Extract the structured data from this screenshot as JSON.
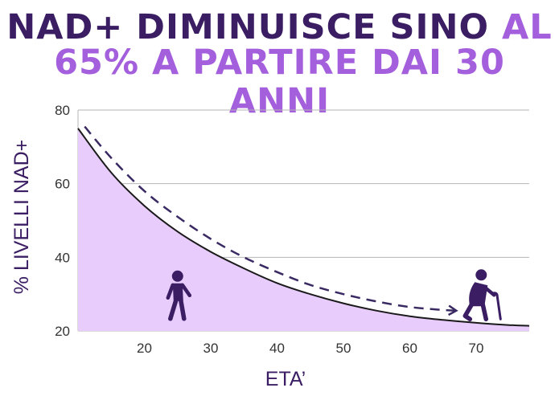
{
  "header": {
    "line1_dark": "NAD+ DIMINUISCE SINO",
    "line1_purple": "AL",
    "line2_purple": "65% A PARTIRE DAI 30 ANNI"
  },
  "chart_data": {
    "type": "area",
    "title": "NAD+ DIMINUISCE SINO AL 65% A PARTIRE DAI 30 ANNI",
    "xlabel": "ETA’",
    "ylabel": "% LIVELLI NAD+",
    "xlim": [
      10,
      78
    ],
    "ylim": [
      20,
      80
    ],
    "xticks": [
      20,
      30,
      40,
      50,
      60,
      70
    ],
    "yticks": [
      20,
      40,
      60,
      80
    ],
    "grid": "horizontal",
    "x": [
      10,
      15,
      20,
      25,
      30,
      35,
      40,
      45,
      50,
      55,
      60,
      65,
      70,
      75,
      78
    ],
    "series": [
      {
        "values": [
          75,
          63,
          54,
          47,
          41.5,
          37,
          33,
          30,
          27.5,
          25.5,
          24,
          23,
          22.2,
          21.6,
          21.4
        ]
      }
    ],
    "trend_arrow": {
      "x": [
        11,
        15,
        20,
        25,
        30,
        35,
        40,
        45,
        50,
        55,
        60,
        65,
        67
      ],
      "y": [
        75.5,
        67,
        58,
        51,
        45,
        40,
        36,
        32.5,
        30,
        28,
        26.5,
        25.7,
        25.5
      ]
    },
    "icons": [
      {
        "name": "young-person-walking-icon",
        "x": 25,
        "y": 29
      },
      {
        "name": "elderly-person-with-cane-icon",
        "x": 71,
        "y": 28
      }
    ],
    "colors": {
      "area_fill": "#e8ccfc",
      "line": "#1a1a1a",
      "arrow": "#3a2a63",
      "icons": "#3a1d63",
      "grid": "#b5b5b5"
    }
  }
}
